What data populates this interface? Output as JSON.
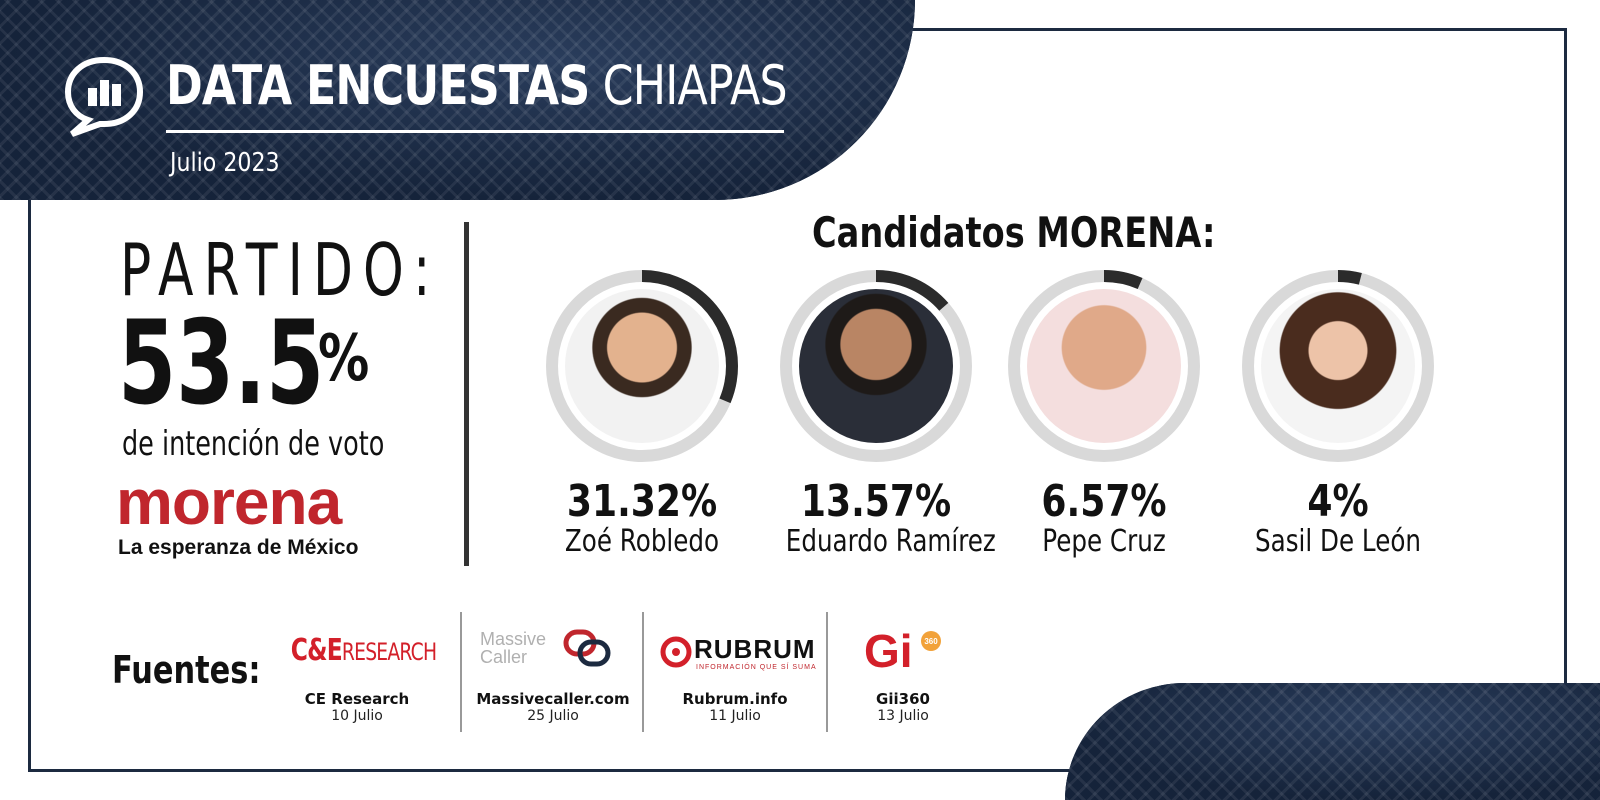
{
  "header": {
    "title_bold": "DATA ENCUESTAS",
    "title_light": "CHIAPAS",
    "date": "Julio 2023",
    "icon": "chat-bubble-bar-chart-icon"
  },
  "party": {
    "label": "PARTIDO:",
    "value": "53.5",
    "unit": "%",
    "caption": "de intención de voto",
    "logo_text": "morena",
    "slogan": "La esperanza de México",
    "brand_color": "#c0262d"
  },
  "candidates_title": "Candidatos MORENA:",
  "candidates": [
    {
      "value_label": "31.32%",
      "name": "Zoé Robledo",
      "percent": 31.32
    },
    {
      "value_label": "13.57%",
      "name": "Eduardo Ramírez",
      "percent": 13.57
    },
    {
      "value_label": "6.57%",
      "name": "Pepe Cruz",
      "percent": 6.57
    },
    {
      "value_label": "4%",
      "name": "Sasil De León",
      "percent": 4
    }
  ],
  "sources_label": "Fuentes:",
  "sources": [
    {
      "logo_main": "C&E",
      "logo_sub": "RESEARCH",
      "name": "CE Research",
      "date": "10 Julio"
    },
    {
      "logo_main": "Massive",
      "logo_sub": "Caller",
      "name": "Massivecaller.com",
      "date": "25 Julio"
    },
    {
      "logo_main": "RUBRUM",
      "logo_sub": "INFORMACIÓN QUE SÍ SUMA",
      "name": "Rubrum.info",
      "date": "11 Julio"
    },
    {
      "logo_main": "Gi",
      "logo_sub": "360",
      "name": "Gii360",
      "date": "13 Julio"
    }
  ],
  "colors": {
    "navy": "#15233a",
    "ring_track": "#d9d9d9",
    "ring_fill": "#2b2b2b",
    "accent_red": "#d3202a"
  }
}
